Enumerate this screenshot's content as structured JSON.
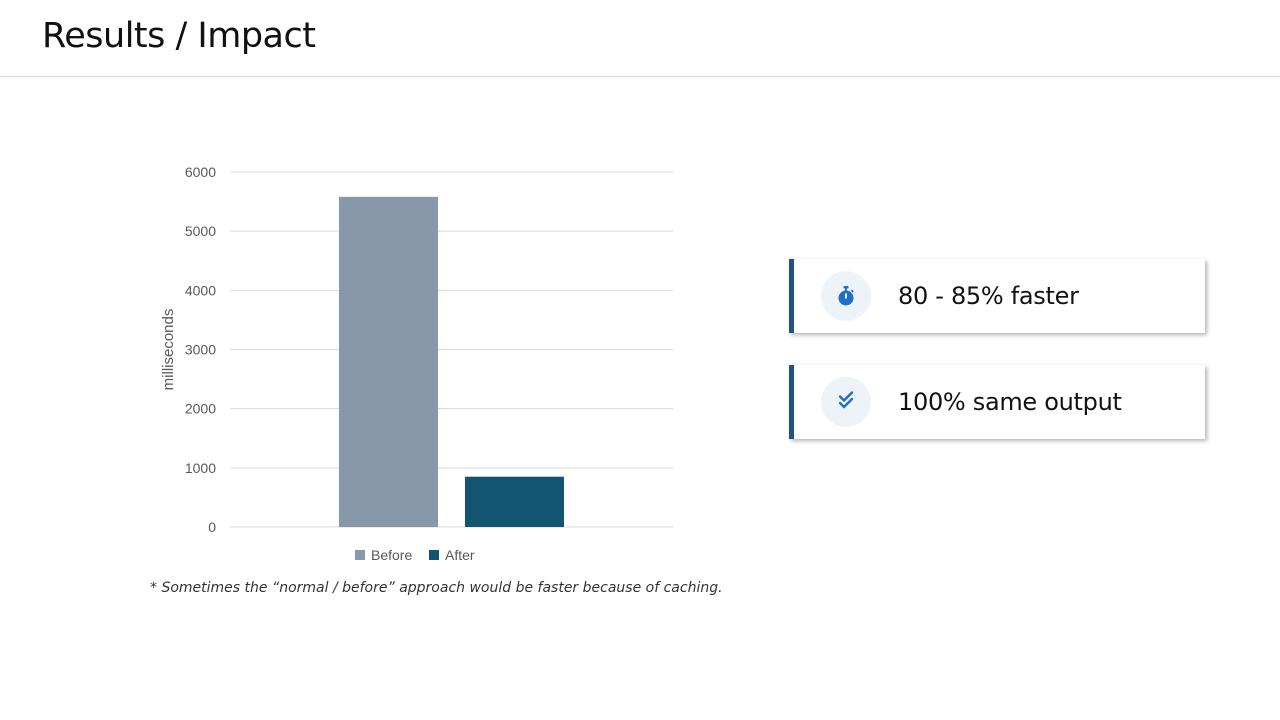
{
  "slide": {
    "title": "Results / Impact",
    "footnote": "* Sometimes the “normal / before” approach would be faster because of caching."
  },
  "cards": [
    {
      "icon": "stopwatch-icon",
      "text": "80 - 85% faster"
    },
    {
      "icon": "double-check-icon",
      "text": "100% same output"
    }
  ],
  "colors": {
    "accent": "#24527e",
    "icon": "#1f6fc5",
    "before": "#8698aa",
    "after": "#135472"
  },
  "chart_data": {
    "type": "bar",
    "categories": [
      ""
    ],
    "series": [
      {
        "name": "Before",
        "values": [
          5580
        ],
        "color": "#8698aa"
      },
      {
        "name": "After",
        "values": [
          850
        ],
        "color": "#135472"
      }
    ],
    "ylabel": "milliseconds",
    "ylim": [
      0,
      6000
    ],
    "yticks": [
      0,
      1000,
      2000,
      3000,
      4000,
      5000,
      6000
    ],
    "grid": true,
    "legend": "bottom"
  }
}
